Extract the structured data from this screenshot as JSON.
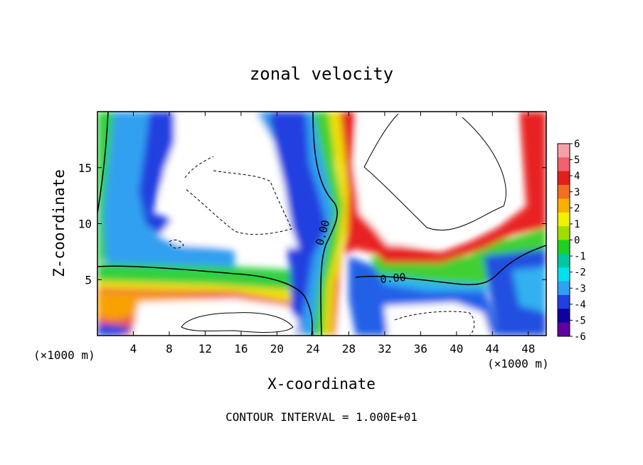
{
  "chart_data": {
    "type": "heatmap",
    "title": "zonal velocity",
    "xlabel": "X-coordinate",
    "ylabel": "Z-coordinate",
    "x_unit_left": "(×1000 m)",
    "x_unit_right": "(×1000 m)",
    "xlim": [
      0,
      50
    ],
    "ylim": [
      0,
      20
    ],
    "x_ticks": [
      4,
      8,
      12,
      16,
      20,
      24,
      28,
      32,
      36,
      40,
      44,
      48
    ],
    "y_ticks": [
      5,
      10,
      15
    ],
    "footer": "CONTOUR INTERVAL = 1.000E+01",
    "contour_labels": [
      "0.00",
      "0.00"
    ],
    "colorbar": {
      "range": [
        -6,
        6
      ],
      "tick_labels": [
        "6",
        "5",
        "4",
        "3",
        "2",
        "1",
        "0",
        "-1",
        "-2",
        "-3",
        "-4",
        "-5",
        "-6"
      ],
      "colors": [
        "#f5a0a8",
        "#f06070",
        "#e02020",
        "#f07020",
        "#f8b000",
        "#f0f000",
        "#a0e000",
        "#20d020",
        "#00c8a0",
        "#00e0f0",
        "#30a0f0",
        "#2040e0",
        "#1000a0",
        "#6000a0"
      ]
    },
    "out_of_range_color": "#ffffff",
    "grid": false
  }
}
